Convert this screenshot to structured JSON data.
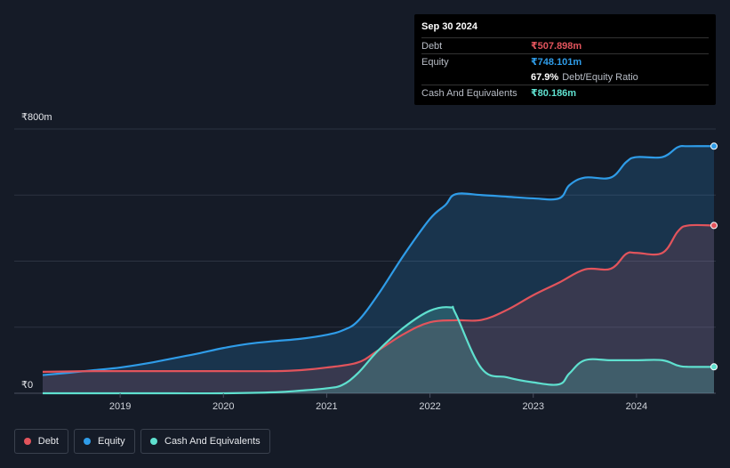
{
  "tooltip": {
    "date": "Sep 30 2024",
    "debt_label": "Debt",
    "debt_value": "₹507.898m",
    "equity_label": "Equity",
    "equity_value": "₹748.101m",
    "ratio_value": "67.9%",
    "ratio_label": "Debt/Equity Ratio",
    "cash_label": "Cash And Equivalents",
    "cash_value": "₹80.186m"
  },
  "legend": {
    "debt": "Debt",
    "equity": "Equity",
    "cash": "Cash And Equivalents"
  },
  "colors": {
    "debt": "#e2545c",
    "equity": "#2f9ce8",
    "cash": "#5fe0cf",
    "background": "#151b27"
  },
  "chart_data": {
    "type": "area",
    "title": "",
    "xlabel": "",
    "ylabel": "",
    "y_top_label": "₹800m",
    "y_bottom_label": "₹0",
    "ylim": [
      0,
      800
    ],
    "xlim": [
      2018.25,
      2024.75
    ],
    "x_ticks": [
      2019,
      2020,
      2021,
      2022,
      2023,
      2024
    ],
    "x_tick_labels": [
      "2019",
      "2020",
      "2021",
      "2022",
      "2023",
      "2024"
    ],
    "grid": true,
    "series": [
      {
        "name": "Equity",
        "points": [
          [
            2018.25,
            55
          ],
          [
            2018.5,
            62
          ],
          [
            2018.75,
            70
          ],
          [
            2019,
            78
          ],
          [
            2019.25,
            90
          ],
          [
            2019.5,
            105
          ],
          [
            2019.75,
            120
          ],
          [
            2020,
            137
          ],
          [
            2020.25,
            150
          ],
          [
            2020.5,
            158
          ],
          [
            2020.75,
            165
          ],
          [
            2021,
            177
          ],
          [
            2021.15,
            190
          ],
          [
            2021.3,
            218
          ],
          [
            2021.5,
            300
          ],
          [
            2021.75,
            420
          ],
          [
            2022,
            528
          ],
          [
            2022.15,
            570
          ],
          [
            2022.25,
            603
          ],
          [
            2022.5,
            600
          ],
          [
            2022.75,
            595
          ],
          [
            2023,
            590
          ],
          [
            2023.25,
            590
          ],
          [
            2023.35,
            630
          ],
          [
            2023.5,
            653
          ],
          [
            2023.75,
            653
          ],
          [
            2023.9,
            700
          ],
          [
            2024,
            715
          ],
          [
            2024.25,
            715
          ],
          [
            2024.4,
            745
          ],
          [
            2024.5,
            748
          ],
          [
            2024.75,
            748
          ]
        ]
      },
      {
        "name": "Debt",
        "points": [
          [
            2018.25,
            65
          ],
          [
            2018.5,
            66
          ],
          [
            2018.75,
            67
          ],
          [
            2019,
            67
          ],
          [
            2019.5,
            67
          ],
          [
            2020,
            67
          ],
          [
            2020.5,
            67
          ],
          [
            2020.75,
            70
          ],
          [
            2021,
            78
          ],
          [
            2021.3,
            93
          ],
          [
            2021.5,
            130
          ],
          [
            2021.75,
            180
          ],
          [
            2022,
            215
          ],
          [
            2022.25,
            221
          ],
          [
            2022.5,
            222
          ],
          [
            2022.75,
            253
          ],
          [
            2023,
            297
          ],
          [
            2023.25,
            335
          ],
          [
            2023.5,
            375
          ],
          [
            2023.75,
            377
          ],
          [
            2023.9,
            422
          ],
          [
            2024,
            425
          ],
          [
            2024.25,
            425
          ],
          [
            2024.4,
            490
          ],
          [
            2024.5,
            508
          ],
          [
            2024.75,
            508
          ]
        ]
      },
      {
        "name": "Cash And Equivalents",
        "points": [
          [
            2018.25,
            0
          ],
          [
            2018.5,
            0
          ],
          [
            2019,
            0
          ],
          [
            2019.5,
            0
          ],
          [
            2020,
            0
          ],
          [
            2020.5,
            3
          ],
          [
            2020.75,
            8
          ],
          [
            2021,
            15
          ],
          [
            2021.15,
            25
          ],
          [
            2021.3,
            60
          ],
          [
            2021.5,
            130
          ],
          [
            2021.75,
            200
          ],
          [
            2022,
            250
          ],
          [
            2022.2,
            260
          ],
          [
            2022.25,
            240
          ],
          [
            2022.5,
            75
          ],
          [
            2022.75,
            48
          ],
          [
            2023,
            33
          ],
          [
            2023.25,
            27
          ],
          [
            2023.35,
            60
          ],
          [
            2023.5,
            100
          ],
          [
            2023.75,
            100
          ],
          [
            2024,
            100
          ],
          [
            2024.25,
            100
          ],
          [
            2024.4,
            84
          ],
          [
            2024.5,
            80
          ],
          [
            2024.75,
            80
          ]
        ]
      }
    ]
  }
}
